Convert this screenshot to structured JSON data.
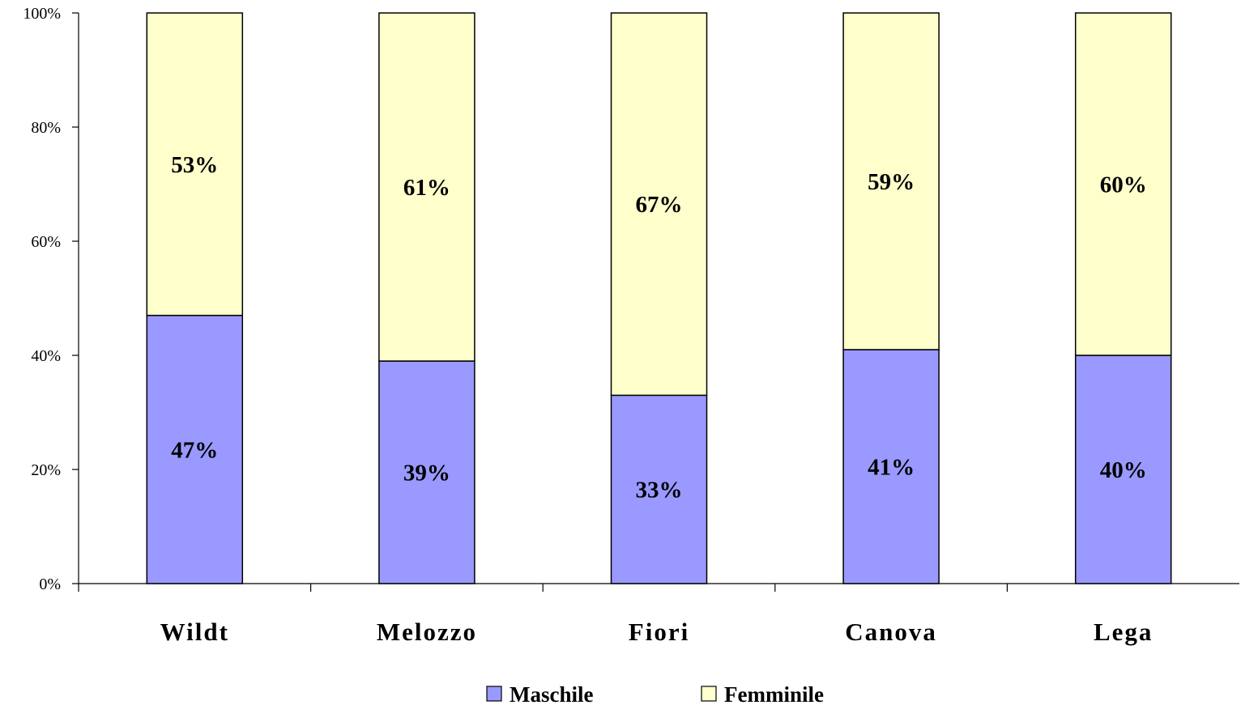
{
  "chart_data": {
    "type": "bar",
    "stacked": true,
    "normalized": true,
    "categories": [
      "Wildt",
      "Melozzo",
      "Fiori",
      "Canova",
      "Lega"
    ],
    "series": [
      {
        "name": "Maschile",
        "values": [
          47,
          39,
          33,
          41,
          40
        ],
        "labels": [
          "47%",
          "39%",
          "33%",
          "41%",
          "40%"
        ],
        "color": "#9999ff"
      },
      {
        "name": "Femminile",
        "values": [
          53,
          61,
          67,
          59,
          60
        ],
        "labels": [
          "53%",
          "61%",
          "67%",
          "59%",
          "60%"
        ],
        "color": "#ffffcc"
      }
    ],
    "ylim": [
      0,
      100
    ],
    "yticks": [
      0,
      20,
      40,
      60,
      80,
      100
    ],
    "ytick_labels": [
      "0%",
      "20%",
      "40%",
      "60%",
      "80%",
      "100%"
    ],
    "title": "",
    "xlabel": "",
    "ylabel": "",
    "grid": false,
    "legend_position": "bottom"
  }
}
